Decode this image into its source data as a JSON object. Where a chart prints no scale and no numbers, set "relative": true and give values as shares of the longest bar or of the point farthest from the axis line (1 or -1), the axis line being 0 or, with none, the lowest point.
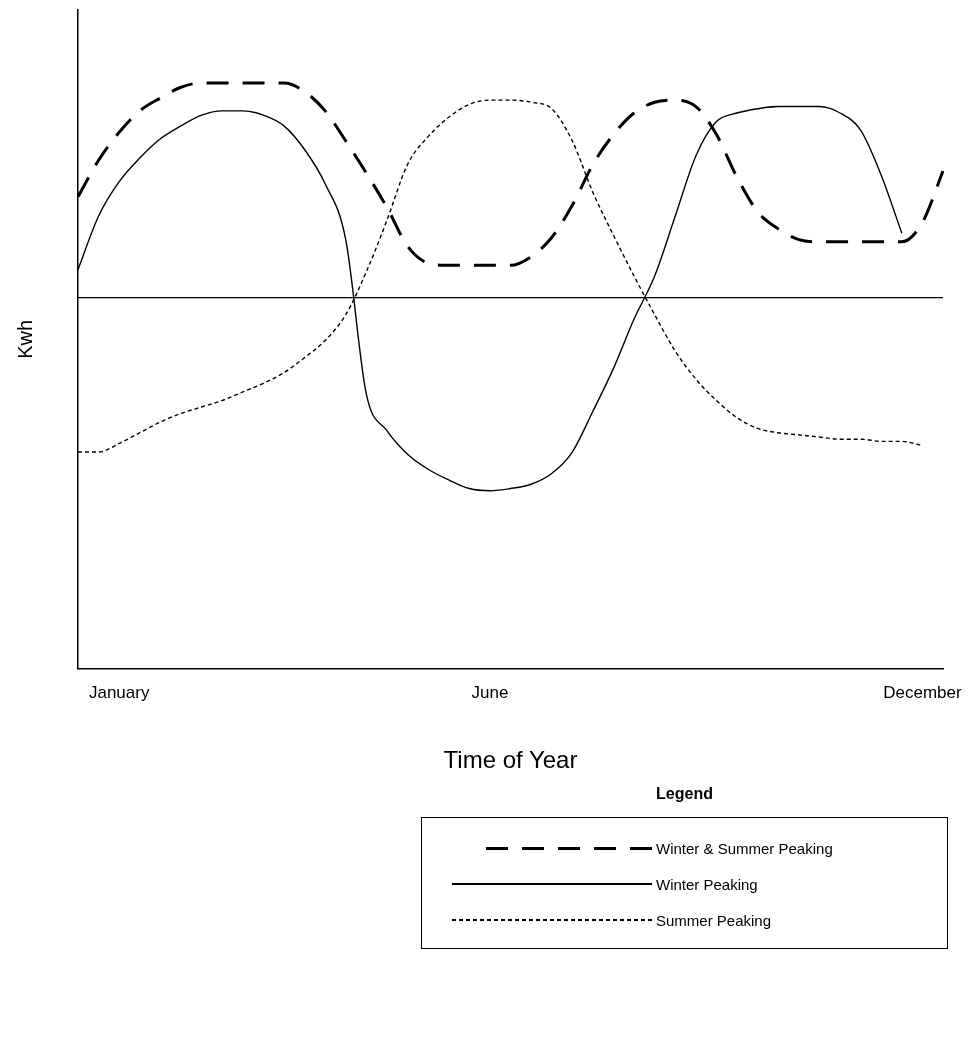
{
  "chart_data": {
    "type": "line",
    "relative": true,
    "xlabel": "Time of Year",
    "ylabel": "Kwh",
    "legend_title": "Legend",
    "legend": "bottom right",
    "grid": false,
    "marker": "none",
    "categories": [
      null,
      null,
      "January",
      null,
      null,
      null,
      null,
      null,
      null,
      null,
      null,
      null,
      null,
      null,
      null,
      null,
      null,
      null,
      null,
      null,
      "June",
      null,
      null,
      null,
      null,
      null,
      null,
      null,
      null,
      null,
      null,
      null,
      null,
      null,
      null,
      null,
      null,
      null,
      null,
      null,
      null,
      "December",
      null
    ],
    "series": [
      {
        "name": "Winter & Summer Peaking",
        "color": "#000000",
        "line_style": "dashed",
        "values": [
          0.47,
          0.64,
          0.77,
          0.87,
          0.93,
          0.98,
          1.0,
          1.0,
          1.0,
          1.0,
          1.0,
          0.96,
          0.87,
          0.73,
          0.58,
          0.42,
          0.24,
          0.16,
          0.15,
          0.15,
          0.15,
          0.15,
          0.19,
          0.28,
          0.43,
          0.62,
          0.76,
          0.86,
          0.91,
          0.92,
          0.89,
          0.76,
          0.56,
          0.4,
          0.32,
          0.27,
          0.26,
          0.26,
          0.26,
          0.26,
          0.26,
          0.35,
          0.59
        ]
      },
      {
        "name": "Winter Peaking",
        "color": "#000000",
        "line_style": "solid",
        "values": [
          0.13,
          0.38,
          0.54,
          0.65,
          0.74,
          0.8,
          0.85,
          0.87,
          0.87,
          0.85,
          0.8,
          0.69,
          0.53,
          0.27,
          -0.45,
          -0.62,
          -0.73,
          -0.8,
          -0.85,
          -0.89,
          -0.9,
          -0.89,
          -0.87,
          -0.82,
          -0.72,
          -0.53,
          -0.33,
          -0.1,
          0.1,
          0.38,
          0.66,
          0.82,
          0.86,
          0.88,
          0.89,
          0.89,
          0.89,
          0.86,
          0.78,
          0.57,
          0.3,
          null,
          null
        ]
      },
      {
        "name": "Summer Peaking",
        "color": "#000000",
        "line_style": "dotted",
        "values": [
          -0.72,
          -0.72,
          -0.68,
          -0.63,
          -0.58,
          -0.54,
          -0.51,
          -0.48,
          -0.44,
          -0.4,
          -0.35,
          -0.28,
          -0.2,
          -0.08,
          0.12,
          0.36,
          0.62,
          0.75,
          0.84,
          0.9,
          0.92,
          0.92,
          0.91,
          0.88,
          0.73,
          0.49,
          0.29,
          0.1,
          -0.08,
          -0.25,
          -0.38,
          -0.48,
          -0.56,
          -0.61,
          -0.63,
          -0.64,
          -0.65,
          -0.66,
          -0.66,
          -0.67,
          -0.67,
          -0.69,
          null
        ]
      }
    ]
  }
}
